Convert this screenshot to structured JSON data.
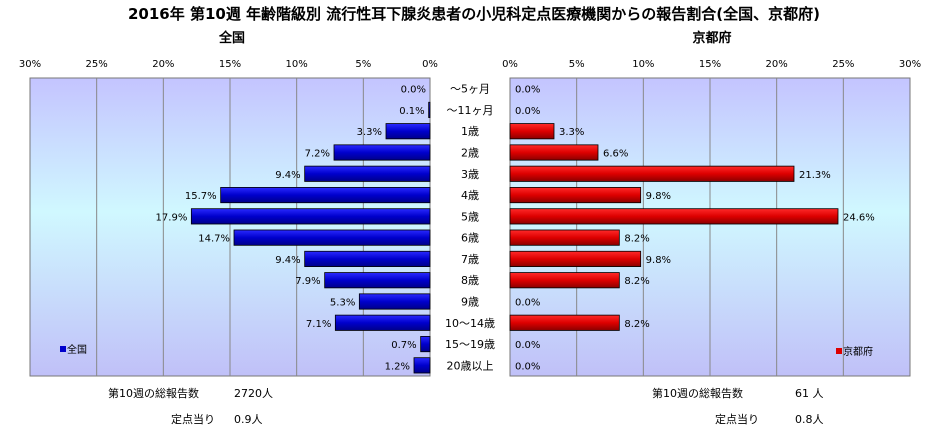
{
  "title": "2016年 第10週 年齢階級別 流行性耳下腺炎患者の小児科定点医療機関からの報告割合(全国、京都府)",
  "colors": {
    "national": "#0000CC",
    "kyoto": "#DD0000",
    "grid": "#888888"
  },
  "chart_data": [
    {
      "type": "bar",
      "subtitle": "全国",
      "orientation": "horizontal-left",
      "xlim": [
        0,
        30
      ],
      "ticks": [
        "30%",
        "25%",
        "20%",
        "15%",
        "10%",
        "5%",
        "0%"
      ],
      "categories": [
        "～5ヶ月",
        "～11ヶ月",
        "1歳",
        "2歳",
        "3歳",
        "4歳",
        "5歳",
        "6歳",
        "7歳",
        "8歳",
        "9歳",
        "10～14歳",
        "15～19歳",
        "20歳以上"
      ],
      "values": [
        0.0,
        0.1,
        3.3,
        7.2,
        9.4,
        15.7,
        17.9,
        14.7,
        9.4,
        7.9,
        5.3,
        7.1,
        0.7,
        1.2
      ],
      "value_labels": [
        "0.0%",
        "0.1%",
        "3.3%",
        "7.2%",
        "9.4%",
        "15.7%",
        "17.9%",
        "14.7%",
        "9.4%",
        "7.9%",
        "5.3%",
        "7.1%",
        "0.7%",
        "1.2%"
      ],
      "legend": "全国",
      "legend_position": "bottom-left"
    },
    {
      "type": "bar",
      "subtitle": "京都府",
      "orientation": "horizontal-right",
      "xlim": [
        0,
        30
      ],
      "ticks": [
        "0%",
        "5%",
        "10%",
        "15%",
        "20%",
        "25%",
        "30%"
      ],
      "categories": [
        "～5ヶ月",
        "～11ヶ月",
        "1歳",
        "2歳",
        "3歳",
        "4歳",
        "5歳",
        "6歳",
        "7歳",
        "8歳",
        "9歳",
        "10～14歳",
        "15～19歳",
        "20歳以上"
      ],
      "values": [
        0.0,
        0.0,
        3.3,
        6.6,
        21.3,
        9.8,
        24.6,
        8.2,
        9.8,
        8.2,
        0.0,
        8.2,
        0.0,
        0.0
      ],
      "value_labels": [
        "0.0%",
        "0.0%",
        "3.3%",
        "6.6%",
        "21.3%",
        "9.8%",
        "24.6%",
        "8.2%",
        "9.8%",
        "8.2%",
        "0.0%",
        "8.2%",
        "0.0%",
        "0.0%"
      ],
      "legend": "京都府",
      "legend_position": "bottom-right"
    }
  ],
  "summary": {
    "national_total_label": "第10週の総報告数",
    "national_total_value": "2720人",
    "national_per_label": "定点当り",
    "national_per_value": "0.9人",
    "kyoto_total_label": "第10週の総報告数",
    "kyoto_total_value": "61 人",
    "kyoto_per_label": "定点当り",
    "kyoto_per_value": "0.8人"
  }
}
